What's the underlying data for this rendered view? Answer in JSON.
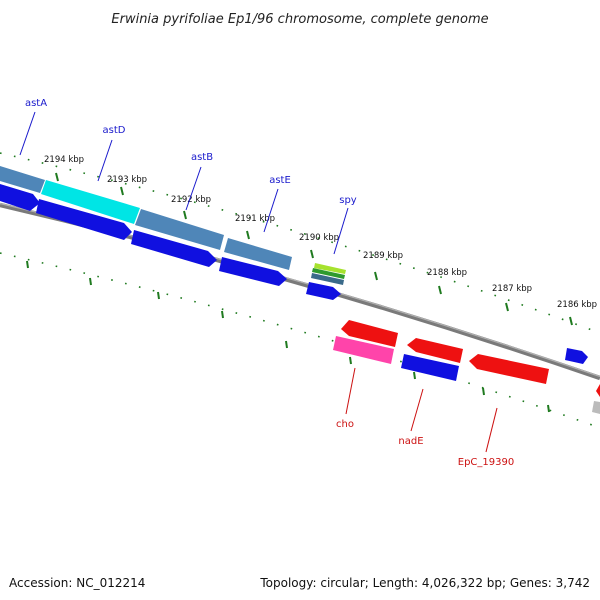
{
  "title": "Erwinia pyrifoliae Ep1/96 chromosome, complete genome",
  "footer": {
    "accession": "Accession: NC_012214",
    "topology": "Topology: circular; Length: 4,026,322 bp; Genes: 3,742"
  },
  "colors": {
    "backbone": "#808080",
    "tick": "#1f7a1f",
    "forward_label": "#1a1acc",
    "reverse_label": "#cc1111"
  },
  "scale_labels": [
    "2194 kbp",
    "2193 kbp",
    "2192 kbp",
    "2191 kbp",
    "2190 kbp",
    "2189 kbp",
    "2188 kbp",
    "2187 kbp",
    "2186 kbp"
  ],
  "forward_genes": [
    {
      "label": "astA"
    },
    {
      "label": "astD"
    },
    {
      "label": "astB"
    },
    {
      "label": "astE"
    },
    {
      "label": "spy"
    }
  ],
  "reverse_genes": [
    {
      "label": "cho"
    },
    {
      "label": "nadE"
    },
    {
      "label": "EpC_19390"
    }
  ],
  "feature_colors": {
    "cds_forward": "#1010e0",
    "cds_reverse": "#ee1111",
    "gene_steelblue": "#4f86b8",
    "gene_highlight": "#00eeee",
    "pink": "#ff44aa",
    "grey": "#bbbbbb"
  }
}
